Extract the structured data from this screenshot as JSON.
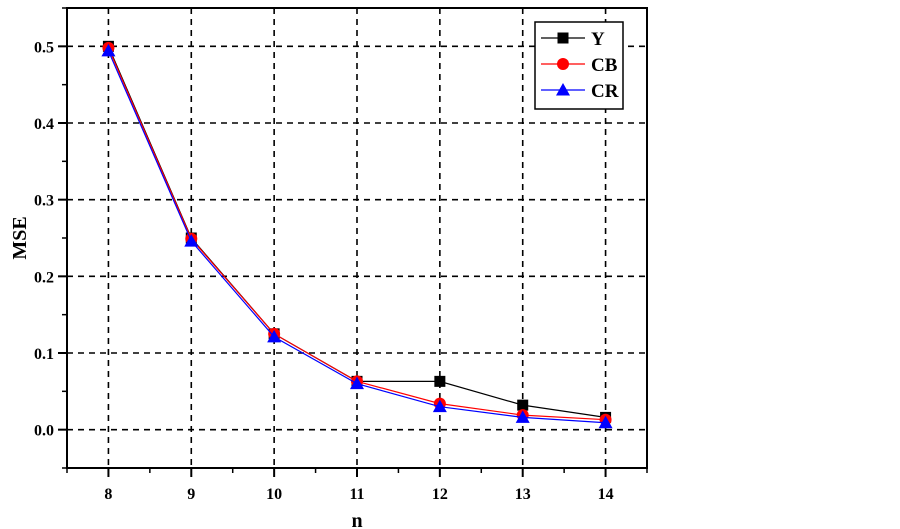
{
  "chart_data": {
    "type": "line",
    "title": "",
    "xlabel": "n",
    "ylabel": "MSE",
    "x": [
      8,
      9,
      10,
      11,
      12,
      13,
      14
    ],
    "xlim": [
      7.5,
      14.5
    ],
    "ylim": [
      -0.05,
      0.55
    ],
    "xticks": [
      "8",
      "9",
      "10",
      "11",
      "12",
      "13",
      "14"
    ],
    "yticks": [
      "0.0",
      "0.1",
      "0.2",
      "0.3",
      "0.4",
      "0.5"
    ],
    "grid": true,
    "legend_position": "top-right",
    "series": [
      {
        "name": "Y",
        "values": [
          0.5,
          0.25,
          0.125,
          0.063,
          0.063,
          0.032,
          0.016
        ],
        "color": "#000000",
        "marker": "square"
      },
      {
        "name": "CB",
        "values": [
          0.498,
          0.249,
          0.125,
          0.063,
          0.034,
          0.019,
          0.013
        ],
        "color": "#ff0000",
        "marker": "circle"
      },
      {
        "name": "CR",
        "values": [
          0.494,
          0.246,
          0.121,
          0.06,
          0.03,
          0.016,
          0.009
        ],
        "color": "#0000ff",
        "marker": "triangle"
      }
    ]
  }
}
